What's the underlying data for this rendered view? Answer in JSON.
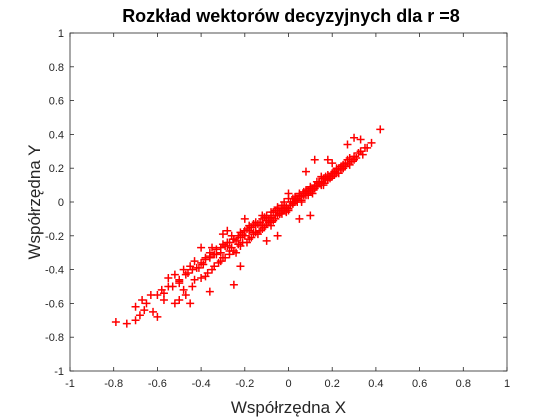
{
  "chart_data": {
    "type": "scatter",
    "title": "Rozkład wektorów decyzyjnych dla r =8",
    "xlabel": "Współrzędna X",
    "ylabel": "Współrzędna Y",
    "xlim": [
      -1,
      1
    ],
    "ylim": [
      -1,
      1
    ],
    "xticks": [
      -1,
      -0.8,
      -0.6,
      -0.4,
      -0.2,
      0,
      0.2,
      0.4,
      0.6,
      0.8,
      1
    ],
    "yticks": [
      -1,
      -0.8,
      -0.6,
      -0.4,
      -0.2,
      0,
      0.2,
      0.4,
      0.6,
      0.8,
      1
    ],
    "xtick_labels": [
      "-1",
      "-0.8",
      "-0.6",
      "-0.4",
      "-0.2",
      "0",
      "0.2",
      "0.4",
      "0.6",
      "0.8",
      "1"
    ],
    "ytick_labels": [
      "-1",
      "-0.8",
      "-0.6",
      "-0.4",
      "-0.2",
      "0",
      "0.2",
      "0.4",
      "0.6",
      "0.8",
      "1"
    ],
    "grid": false,
    "marker": "+",
    "color": "#ff0000",
    "series": [
      {
        "x": [
          -0.79,
          -0.74,
          -0.7,
          -0.68,
          -0.66,
          -0.65,
          -0.7,
          -0.67,
          -0.63,
          -0.6,
          -0.58,
          -0.55,
          -0.52,
          -0.5,
          -0.48,
          -0.45,
          -0.43,
          -0.4,
          -0.38,
          -0.36,
          -0.35,
          -0.33,
          -0.3,
          -0.28,
          -0.26,
          -0.25,
          -0.22,
          -0.2,
          -0.18,
          -0.16,
          -0.15,
          -0.12,
          -0.1,
          -0.08,
          -0.06,
          -0.05,
          -0.03,
          -0.02,
          0.0,
          0.02,
          0.03,
          0.05,
          0.07,
          0.08,
          0.1,
          0.12,
          0.14,
          0.15,
          0.17,
          0.18,
          0.2,
          0.22,
          0.24,
          0.25,
          0.27,
          0.3,
          0.33,
          0.35,
          0.38,
          0.42,
          -0.62,
          -0.57,
          -0.53,
          -0.5,
          -0.47,
          -0.44,
          -0.41,
          -0.38,
          -0.36,
          -0.33,
          -0.31,
          -0.29,
          -0.27,
          -0.25,
          -0.23,
          -0.21,
          -0.19,
          -0.17,
          -0.15,
          -0.13,
          -0.11,
          -0.09,
          -0.07,
          -0.05,
          -0.04,
          -0.02,
          -0.01,
          0.01,
          0.02,
          0.04,
          0.05,
          0.07,
          0.09,
          0.1,
          0.12,
          0.13,
          0.15,
          0.16,
          0.18,
          0.2,
          0.21,
          0.23,
          0.25,
          0.26,
          0.28,
          0.31,
          0.34,
          -0.55,
          -0.5,
          -0.46,
          -0.42,
          -0.39,
          -0.36,
          -0.34,
          -0.31,
          -0.28,
          -0.26,
          -0.24,
          -0.22,
          -0.2,
          -0.18,
          -0.16,
          -0.14,
          -0.12,
          -0.1,
          -0.08,
          -0.06,
          -0.04,
          -0.03,
          -0.01,
          0.0,
          0.02,
          0.03,
          0.05,
          0.06,
          0.08,
          0.09,
          0.11,
          0.13,
          0.14,
          0.16,
          0.17,
          0.19,
          0.21,
          0.22,
          0.24,
          0.27,
          0.3,
          -0.6,
          -0.52,
          -0.48,
          -0.44,
          -0.4,
          -0.37,
          -0.34,
          -0.31,
          -0.29,
          -0.27,
          -0.24,
          -0.22,
          -0.19,
          -0.17,
          -0.14,
          -0.12,
          -0.1,
          -0.08,
          -0.06,
          -0.04,
          -0.02,
          -0.01,
          0.01,
          0.03,
          0.04,
          0.06,
          0.08,
          0.1,
          0.11,
          0.13,
          0.15,
          0.17,
          0.19,
          0.21,
          0.23,
          0.26,
          0.29,
          0.32,
          -0.57,
          -0.47,
          -0.43,
          -0.38,
          -0.35,
          -0.32,
          -0.3,
          -0.27,
          -0.25,
          -0.23,
          -0.21,
          -0.18,
          -0.16,
          -0.13,
          -0.11,
          -0.09,
          -0.07,
          -0.05,
          -0.03,
          -0.01,
          0.0,
          0.02,
          0.04,
          0.06,
          0.07,
          0.09,
          0.11,
          0.12,
          0.14,
          0.16,
          0.18,
          0.2,
          0.22,
          0.24,
          0.28,
          0.36,
          -0.4,
          -0.3,
          -0.2,
          -0.15,
          -0.1,
          0.05,
          0.15,
          0.25,
          0.33,
          -0.45,
          -0.25,
          -0.05,
          0.0,
          0.1,
          0.2,
          0.3,
          -0.36,
          -0.22,
          -0.12,
          0.08,
          0.18,
          -0.5,
          -0.28,
          -0.08,
          0.12,
          0.27
        ],
        "y": [
          -0.71,
          -0.72,
          -0.7,
          -0.67,
          -0.64,
          -0.6,
          -0.62,
          -0.58,
          -0.55,
          -0.55,
          -0.52,
          -0.45,
          -0.43,
          -0.46,
          -0.4,
          -0.38,
          -0.35,
          -0.36,
          -0.33,
          -0.3,
          -0.27,
          -0.28,
          -0.25,
          -0.24,
          -0.2,
          -0.22,
          -0.18,
          -0.17,
          -0.14,
          -0.13,
          -0.12,
          -0.1,
          -0.08,
          -0.06,
          -0.05,
          -0.03,
          -0.02,
          0.0,
          0.02,
          0.0,
          0.03,
          0.05,
          0.04,
          0.07,
          0.08,
          0.1,
          0.12,
          0.11,
          0.14,
          0.16,
          0.17,
          0.19,
          0.2,
          0.22,
          0.25,
          0.27,
          0.3,
          0.32,
          0.35,
          0.43,
          -0.65,
          -0.54,
          -0.5,
          -0.48,
          -0.43,
          -0.4,
          -0.39,
          -0.34,
          -0.32,
          -0.31,
          -0.27,
          -0.26,
          -0.24,
          -0.22,
          -0.2,
          -0.19,
          -0.16,
          -0.15,
          -0.14,
          -0.12,
          -0.09,
          -0.1,
          -0.06,
          -0.04,
          -0.07,
          -0.02,
          -0.03,
          0.0,
          0.02,
          0.01,
          0.04,
          0.06,
          0.05,
          0.09,
          0.08,
          0.12,
          0.1,
          0.14,
          0.13,
          0.15,
          0.18,
          0.17,
          0.2,
          0.23,
          0.22,
          0.26,
          0.28,
          -0.5,
          -0.47,
          -0.42,
          -0.39,
          -0.37,
          -0.33,
          -0.31,
          -0.3,
          -0.26,
          -0.27,
          -0.23,
          -0.21,
          -0.2,
          -0.17,
          -0.18,
          -0.13,
          -0.14,
          -0.11,
          -0.09,
          -0.08,
          -0.06,
          -0.05,
          -0.03,
          -0.04,
          -0.01,
          0.02,
          0.03,
          0.0,
          0.06,
          0.07,
          0.05,
          0.1,
          0.12,
          0.11,
          0.15,
          0.14,
          0.18,
          0.2,
          0.19,
          0.23,
          0.25,
          -0.68,
          -0.6,
          -0.52,
          -0.5,
          -0.45,
          -0.42,
          -0.38,
          -0.35,
          -0.33,
          -0.29,
          -0.3,
          -0.26,
          -0.24,
          -0.21,
          -0.19,
          -0.16,
          -0.13,
          -0.12,
          -0.1,
          -0.07,
          -0.05,
          -0.06,
          -0.02,
          0.0,
          0.02,
          0.01,
          0.04,
          0.06,
          0.07,
          0.09,
          0.12,
          0.13,
          0.15,
          0.16,
          0.2,
          0.21,
          0.24,
          0.29,
          -0.58,
          -0.55,
          -0.46,
          -0.44,
          -0.4,
          -0.36,
          -0.33,
          -0.31,
          -0.29,
          -0.25,
          -0.24,
          -0.22,
          -0.19,
          -0.17,
          -0.15,
          -0.12,
          -0.11,
          -0.08,
          -0.07,
          -0.04,
          -0.05,
          -0.01,
          0.0,
          0.03,
          0.05,
          0.04,
          0.08,
          0.09,
          0.11,
          0.1,
          0.13,
          0.16,
          0.17,
          0.21,
          0.26,
          0.32,
          -0.27,
          -0.19,
          -0.1,
          -0.18,
          -0.23,
          -0.1,
          0.15,
          0.2,
          0.37,
          -0.6,
          -0.49,
          -0.2,
          0.05,
          -0.08,
          0.23,
          0.38,
          -0.53,
          -0.38,
          -0.08,
          0.18,
          0.25,
          -0.58,
          -0.17,
          -0.14,
          0.25,
          0.34
        ]
      }
    ]
  }
}
